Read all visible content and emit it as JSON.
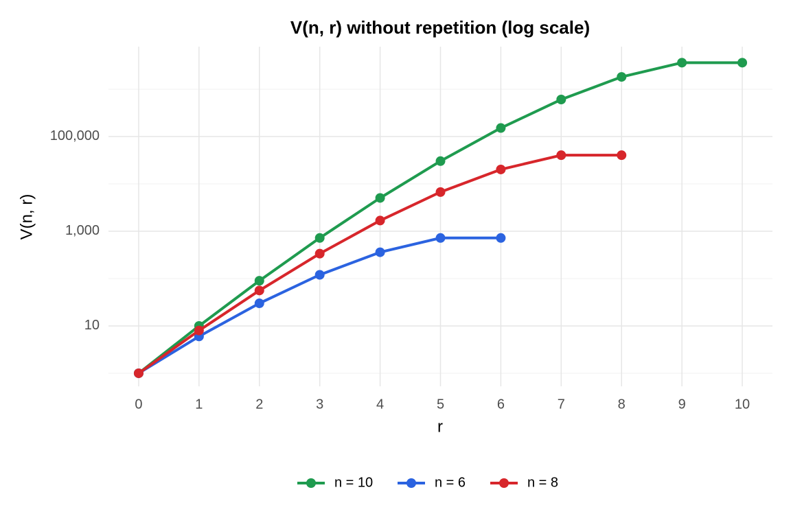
{
  "chart_data": {
    "type": "line",
    "title": "V(n, r) without repetition (log scale)",
    "x_label": "r",
    "y_label": "V(n, r)",
    "x": [
      0,
      1,
      2,
      3,
      4,
      5,
      6,
      7,
      8,
      9,
      10
    ],
    "series": [
      {
        "name": "n = 10",
        "color": "#1f9b4f",
        "values": [
          1,
          10,
          90,
          720,
          5040,
          30240,
          151200,
          604800,
          1814400,
          3628800,
          3628800
        ]
      },
      {
        "name": "n = 6",
        "color": "#2b63e0",
        "values": [
          1,
          6,
          30,
          120,
          360,
          720,
          720,
          null,
          null,
          null,
          null
        ]
      },
      {
        "name": "n = 8",
        "color": "#d7262b",
        "values": [
          1,
          8,
          56,
          336,
          1680,
          6720,
          20160,
          40320,
          40320,
          null,
          null
        ]
      }
    ],
    "xlim": [
      -0.5,
      10.5
    ],
    "xticks": [
      0,
      1,
      2,
      3,
      4,
      5,
      6,
      7,
      8,
      9,
      10
    ],
    "ylim": [
      0.53,
      7900000
    ],
    "log_y": true,
    "yticks": [
      10,
      {
        "value": 1000,
        "label": "1,000"
      },
      {
        "value": 100000,
        "label": "100,000"
      }
    ],
    "yminorticks": [
      1,
      100,
      10000,
      1000000
    ],
    "grid": true,
    "legend": "bottom"
  }
}
